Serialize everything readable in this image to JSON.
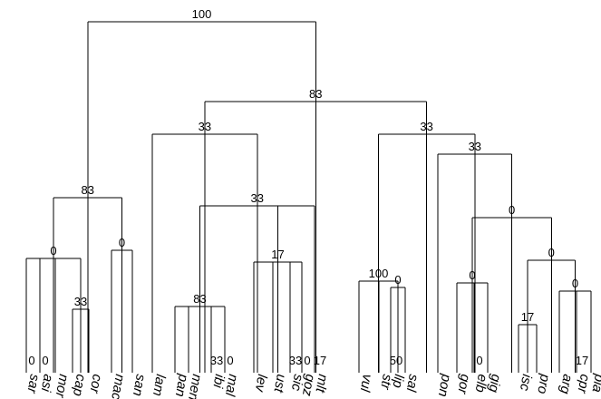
{
  "dendrogram": {
    "leaves": [
      "sar",
      "asi",
      "mor",
      "cap",
      "cor",
      "mac",
      "san",
      "lam",
      "pan",
      "men",
      "ibi",
      "mal",
      "lev",
      "ust",
      "sic",
      "goz",
      "mlt",
      "vul",
      "str",
      "lip",
      "sal",
      "pon",
      "gor",
      "elb",
      "gig",
      "isc",
      "pro",
      "arg",
      "cpr",
      "pia"
    ],
    "root": {
      "support": "100",
      "children": [
        {
          "support": "83",
          "children": [
            {
              "support": "0",
              "children": [
                {
                  "leaf": "sar",
                  "support": "0"
                },
                {
                  "leaf": "asi",
                  "support": "0"
                },
                {
                  "leaf": "mor"
                },
                {
                  "support": "33",
                  "children": [
                    {
                      "leaf": "cap"
                    },
                    {
                      "leaf": "cor"
                    }
                  ]
                }
              ]
            },
            {
              "support": "0",
              "children": [
                {
                  "leaf": "mac"
                },
                {
                  "leaf": "san"
                }
              ]
            }
          ]
        },
        {
          "support": "83",
          "children": [
            {
              "support": "33",
              "children": [
                {
                  "leaf": "lam"
                },
                {
                  "support": "33",
                  "children": [
                    {
                      "support": "83",
                      "children": [
                        {
                          "leaf": "pan"
                        },
                        {
                          "leaf": "men"
                        },
                        {
                          "leaf": "ibi",
                          "support": "33"
                        },
                        {
                          "leaf": "mal",
                          "support": "0"
                        }
                      ]
                    },
                    {
                      "support": "17",
                      "children": [
                        {
                          "leaf": "lev"
                        },
                        {
                          "leaf": "ust"
                        },
                        {
                          "leaf": "sic",
                          "support": "33"
                        },
                        {
                          "leaf": "goz",
                          "support": "0"
                        }
                      ]
                    },
                    {
                      "leaf": "mlt",
                      "support": "17"
                    }
                  ]
                }
              ]
            },
            {
              "support": "33",
              "children": [
                {
                  "support": "100",
                  "children": [
                    {
                      "leaf": "vul"
                    },
                    {
                      "leaf": "str"
                    },
                    {
                      "support": "0",
                      "children": [
                        {
                          "leaf": "lip",
                          "support": "50"
                        },
                        {
                          "leaf": "sal"
                        }
                      ]
                    }
                  ]
                },
                {
                  "support": "33",
                  "children": [
                    {
                      "leaf": "pon"
                    },
                    {
                      "support": "0",
                      "children": [
                        {
                          "support": "0",
                          "children": [
                            {
                              "leaf": "gor"
                            },
                            {
                              "leaf": "elb",
                              "support": "0"
                            },
                            {
                              "leaf": "gig"
                            }
                          ]
                        },
                        {
                          "support": "0",
                          "children": [
                            {
                              "support": "17",
                              "children": [
                                {
                                  "leaf": "isc"
                                },
                                {
                                  "leaf": "pro"
                                }
                              ]
                            },
                            {
                              "support": "0",
                              "children": [
                                {
                                  "leaf": "arg"
                                },
                                {
                                  "leaf": "cpr",
                                  "support": "17"
                                },
                                {
                                  "leaf": "pia"
                                }
                              ]
                            }
                          ]
                        }
                      ]
                    }
                  ]
                }
              ]
            }
          ]
        }
      ]
    }
  }
}
